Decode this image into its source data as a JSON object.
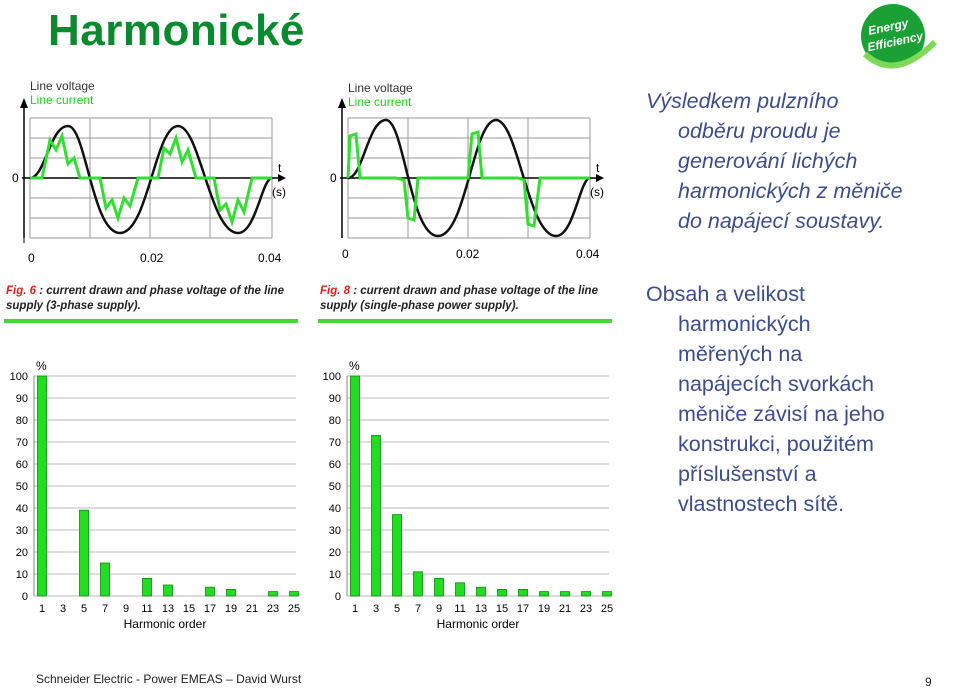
{
  "title": "Harmonické",
  "logo": {
    "line1": "Energy",
    "line2": "Efficiency"
  },
  "wave_charts": [
    {
      "legend_voltage": "Line voltage",
      "legend_current": "Line current",
      "y_zero": "0",
      "axis_t": "t",
      "axis_unit": "(s)",
      "x_ticks": [
        "0",
        "0.02",
        "0.04"
      ],
      "caption_fig": "Fig. 6",
      "caption_rest": " : current drawn and phase voltage of the line",
      "caption_line2": "supply (3-phase supply)."
    },
    {
      "legend_voltage": "Line voltage",
      "legend_current": "Line current",
      "y_zero": "0",
      "axis_t": "t",
      "axis_unit": "(s)",
      "x_ticks": [
        "0",
        "0.02",
        "0.04"
      ],
      "caption_fig": "Fig. 8",
      "caption_rest": " : current drawn and phase voltage of the line",
      "caption_line2": "supply (single-phase power supply)."
    }
  ],
  "chart_data": [
    {
      "type": "bar",
      "ylabel": "%",
      "xlabel": "Harmonic order",
      "ylim": [
        0,
        100
      ],
      "yticks": [
        "0",
        "10",
        "20",
        "30",
        "40",
        "50",
        "60",
        "70",
        "80",
        "90",
        "100"
      ],
      "categories": [
        "1",
        "3",
        "5",
        "7",
        "9",
        "11",
        "13",
        "15",
        "17",
        "19",
        "21",
        "23",
        "25"
      ],
      "values": [
        100,
        0,
        39,
        15,
        0,
        8,
        5,
        0,
        4,
        3,
        0,
        2,
        2
      ],
      "color": "#22dd22"
    },
    {
      "type": "bar",
      "ylabel": "%",
      "xlabel": "Harmonic order",
      "ylim": [
        0,
        100
      ],
      "yticks": [
        "0",
        "10",
        "20",
        "30",
        "40",
        "50",
        "60",
        "70",
        "80",
        "90",
        "100"
      ],
      "categories": [
        "1",
        "3",
        "5",
        "7",
        "9",
        "11",
        "13",
        "15",
        "17",
        "19",
        "21",
        "23",
        "25"
      ],
      "values": [
        100,
        73,
        37,
        11,
        8,
        6,
        4,
        3,
        3,
        2,
        2,
        2,
        2
      ],
      "color": "#22dd22"
    }
  ],
  "text_block_1": {
    "line1": "Výsledkem pulzního",
    "line2": "odběru proudu je",
    "line3": "generování lichých",
    "line4": "harmonických z měniče",
    "line5": "do napájecí soustavy."
  },
  "text_block_2": {
    "line1": "Obsah a velikost",
    "line2": "harmonických",
    "line3": "měřených na",
    "line4": "napájecích svorkách",
    "line5": "měniče závisí na jeho",
    "line6": "konstrukci, použitém",
    "line7": "příslušenství a",
    "line8": "vlastnostech sítě."
  },
  "footer": "Schneider Electric - Power EMEAS  – David Wurst",
  "page_number": "9",
  "colors": {
    "title": "#0a8a2e",
    "text": "#3d4c8c",
    "green": "#22dd22",
    "accent": "#4cd13f",
    "red": "#e0201b"
  }
}
